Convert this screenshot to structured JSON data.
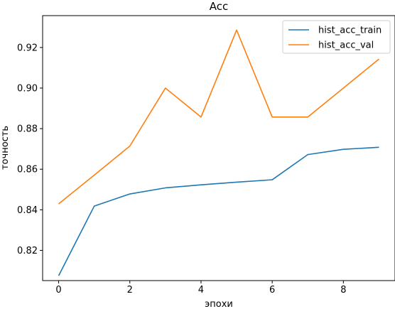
{
  "chart_data": {
    "type": "line",
    "title": "Acc",
    "xlabel": "эпохи",
    "ylabel": "точность",
    "x": [
      0,
      1,
      2,
      3,
      4,
      5,
      6,
      7,
      8,
      9
    ],
    "xlim": [
      -0.45,
      9.45
    ],
    "ylim": [
      0.8051,
      0.9357
    ],
    "xticks": [
      0,
      2,
      4,
      6,
      8
    ],
    "yticks": [
      0.82,
      0.84,
      0.86,
      0.88,
      0.9,
      0.92
    ],
    "xtick_labels": [
      "0",
      "2",
      "4",
      "6",
      "8"
    ],
    "ytick_labels": [
      "0.82",
      "0.84",
      "0.86",
      "0.88",
      "0.90",
      "0.92"
    ],
    "grid": false,
    "legend_position": "top-right",
    "series": [
      {
        "name": "hist_acc_train",
        "color": "#1f77b4",
        "values": [
          0.8075,
          0.8418,
          0.8478,
          0.8508,
          0.8523,
          0.8536,
          0.8548,
          0.8672,
          0.8698,
          0.8708
        ]
      },
      {
        "name": "hist_acc_val",
        "color": "#ff7f0e",
        "values": [
          0.8429,
          0.8571,
          0.8714,
          0.9,
          0.8857,
          0.9286,
          0.8857,
          0.8857,
          0.9,
          0.9143
        ]
      }
    ]
  }
}
